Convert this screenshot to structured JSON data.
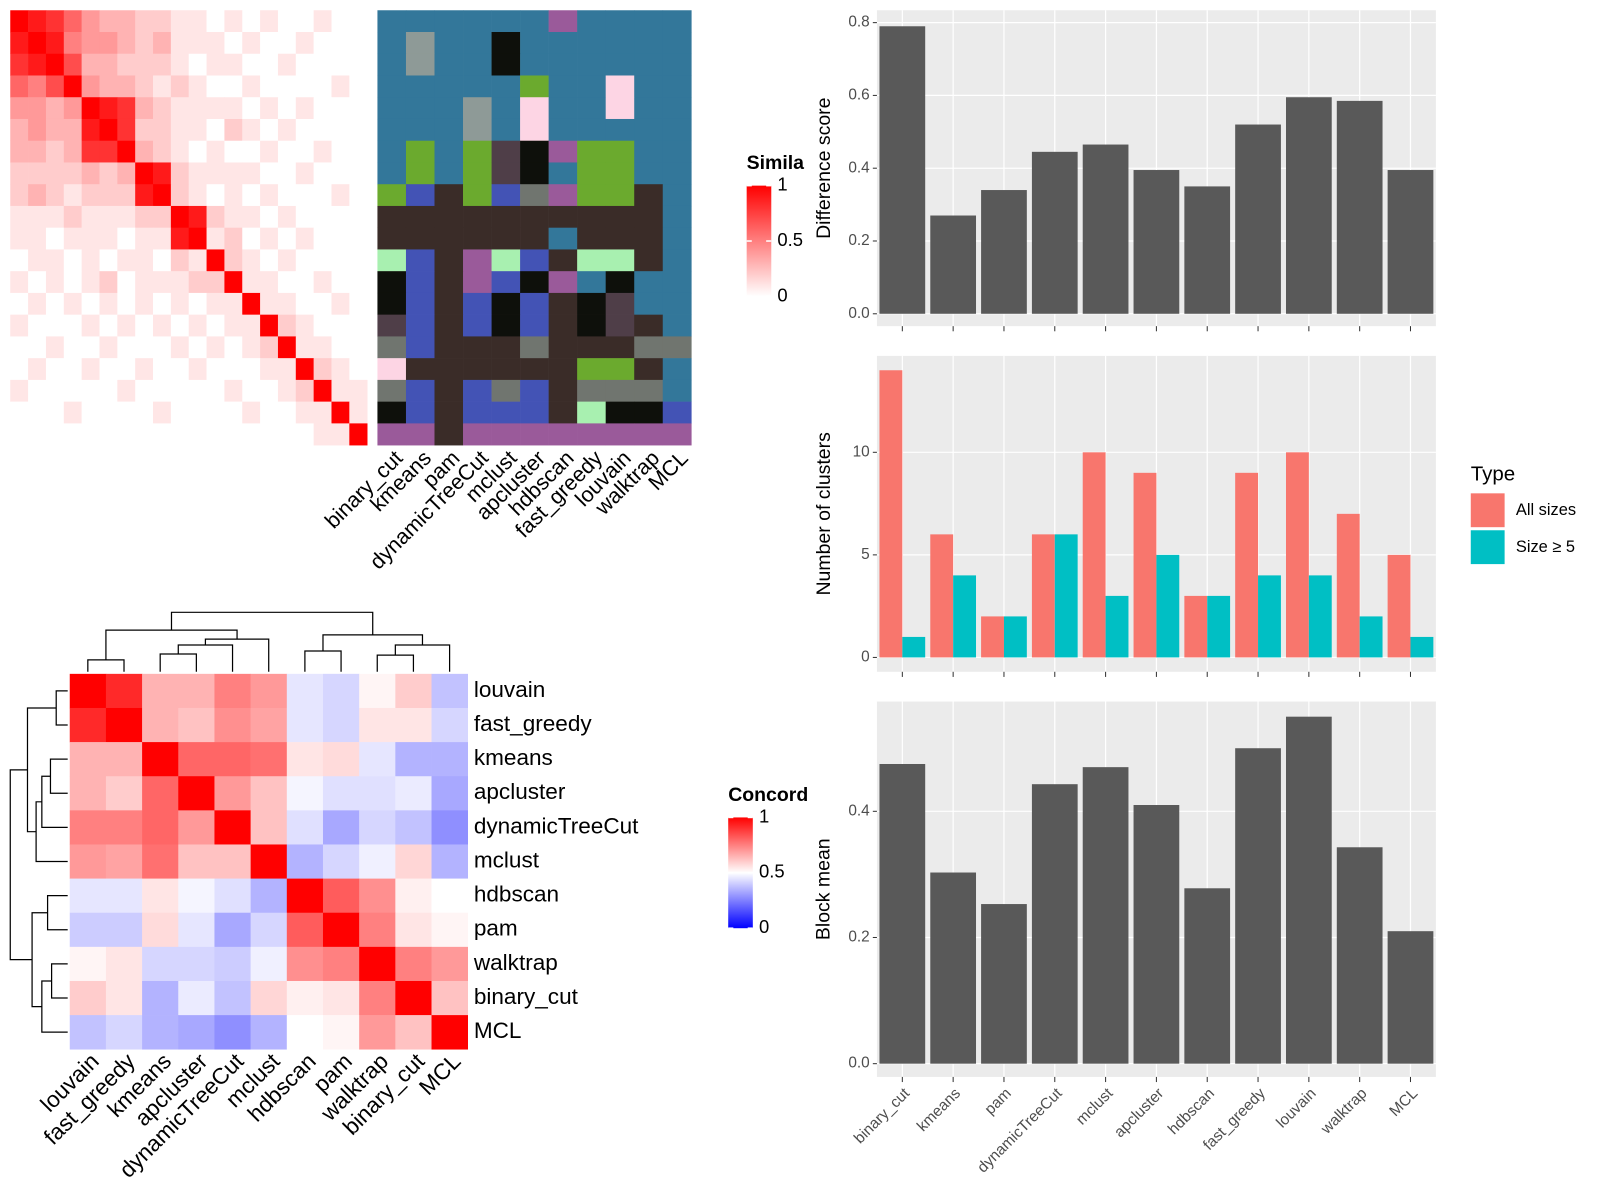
{
  "chart_data": [
    {
      "type": "heatmap",
      "legend_title": "Simila",
      "clim": [
        0,
        1
      ],
      "colorbar_ticks": [
        0,
        0.5,
        1
      ],
      "colors": [
        "#ffffff",
        "#ff0000"
      ],
      "values": [
        [
          1,
          0.9,
          0.8,
          0.6,
          0.4,
          0.3,
          0.3,
          0.2,
          0.2,
          0.1,
          0.1,
          0,
          0.1,
          0,
          0.1,
          0,
          0,
          0.1,
          0,
          0
        ],
        [
          0.9,
          1,
          0.9,
          0.5,
          0.4,
          0.4,
          0.3,
          0.2,
          0.3,
          0.1,
          0.1,
          0.1,
          0,
          0.1,
          0,
          0,
          0.1,
          0,
          0,
          0
        ],
        [
          0.8,
          0.9,
          1,
          0.7,
          0.3,
          0.3,
          0.2,
          0.2,
          0.2,
          0.1,
          0,
          0.1,
          0.1,
          0,
          0,
          0.1,
          0,
          0,
          0,
          0
        ],
        [
          0.6,
          0.5,
          0.7,
          1,
          0.4,
          0.3,
          0.3,
          0.2,
          0.1,
          0.2,
          0.1,
          0,
          0,
          0.1,
          0,
          0,
          0,
          0,
          0.1,
          0
        ],
        [
          0.4,
          0.4,
          0.3,
          0.4,
          1,
          0.9,
          0.8,
          0.3,
          0.2,
          0.1,
          0.1,
          0.1,
          0.1,
          0,
          0.1,
          0,
          0.1,
          0,
          0,
          0
        ],
        [
          0.3,
          0.4,
          0.3,
          0.3,
          0.9,
          1,
          0.8,
          0.2,
          0.2,
          0.1,
          0.1,
          0,
          0.2,
          0.1,
          0,
          0.1,
          0,
          0,
          0,
          0
        ],
        [
          0.3,
          0.3,
          0.2,
          0.3,
          0.8,
          0.8,
          1,
          0.3,
          0.2,
          0.1,
          0,
          0.1,
          0,
          0,
          0.1,
          0,
          0,
          0.1,
          0,
          0
        ],
        [
          0.2,
          0.2,
          0.2,
          0.2,
          0.3,
          0.2,
          0.3,
          1,
          0.9,
          0.2,
          0.1,
          0.1,
          0.1,
          0.1,
          0,
          0,
          0.1,
          0,
          0,
          0
        ],
        [
          0.2,
          0.3,
          0.2,
          0.1,
          0.2,
          0.2,
          0.2,
          0.9,
          1,
          0.2,
          0.1,
          0,
          0.1,
          0,
          0.1,
          0,
          0,
          0,
          0.1,
          0
        ],
        [
          0.1,
          0.1,
          0.1,
          0.2,
          0.1,
          0.1,
          0.1,
          0.2,
          0.2,
          1,
          0.9,
          0.2,
          0.1,
          0.1,
          0,
          0.1,
          0,
          0,
          0,
          0
        ],
        [
          0.1,
          0.1,
          0,
          0.1,
          0.1,
          0.1,
          0,
          0.1,
          0.1,
          0.9,
          1,
          0.1,
          0.2,
          0,
          0.1,
          0,
          0.1,
          0,
          0,
          0
        ],
        [
          0,
          0.1,
          0.1,
          0,
          0.1,
          0,
          0.1,
          0.1,
          0,
          0.2,
          0.1,
          1,
          0.2,
          0.1,
          0,
          0.1,
          0,
          0,
          0,
          0
        ],
        [
          0.1,
          0,
          0.1,
          0,
          0.1,
          0.2,
          0,
          0.1,
          0.1,
          0.1,
          0.2,
          0.2,
          1,
          0.1,
          0.1,
          0,
          0,
          0.1,
          0,
          0
        ],
        [
          0,
          0.1,
          0,
          0.1,
          0,
          0.1,
          0,
          0.1,
          0,
          0.1,
          0,
          0.1,
          0.1,
          1,
          0.1,
          0.1,
          0,
          0,
          0.1,
          0
        ],
        [
          0.1,
          0,
          0,
          0,
          0.1,
          0,
          0.1,
          0,
          0.1,
          0,
          0.1,
          0,
          0.1,
          0.1,
          1,
          0.2,
          0.1,
          0,
          0,
          0
        ],
        [
          0,
          0,
          0.1,
          0,
          0,
          0.1,
          0,
          0,
          0,
          0.1,
          0,
          0.1,
          0,
          0.1,
          0.2,
          1,
          0.1,
          0.1,
          0,
          0
        ],
        [
          0,
          0.1,
          0,
          0,
          0.1,
          0,
          0,
          0.1,
          0,
          0,
          0.1,
          0,
          0,
          0,
          0.1,
          0.1,
          1,
          0.2,
          0.1,
          0
        ],
        [
          0.1,
          0,
          0,
          0,
          0,
          0,
          0.1,
          0,
          0,
          0,
          0,
          0,
          0.1,
          0,
          0,
          0.1,
          0.2,
          1,
          0.1,
          0.1
        ],
        [
          0,
          0,
          0,
          0.1,
          0,
          0,
          0,
          0,
          0.1,
          0,
          0,
          0,
          0,
          0.1,
          0,
          0,
          0.1,
          0.1,
          1,
          0.1
        ],
        [
          0,
          0,
          0,
          0,
          0,
          0,
          0,
          0,
          0,
          0,
          0,
          0,
          0,
          0,
          0,
          0,
          0,
          0.1,
          0.1,
          1
        ]
      ]
    },
    {
      "type": "class_heatmap",
      "categories": [
        "binary_cut",
        "kmeans",
        "pam",
        "dynamicTreeCut",
        "mclust",
        "apcluster",
        "hdbscan",
        "fast_greedy",
        "louvain",
        "walktrap",
        "MCL"
      ],
      "class_colors": [
        "#33779a",
        "#8e9a97",
        "#0e100b",
        "#fdd5e4",
        "#6baa2e",
        "#3a2c28",
        "#4353b5",
        "#a8f0b0",
        "#9a5a9a",
        "#70756f",
        "#4f3e48"
      ],
      "values": [
        [
          0,
          0,
          0,
          0,
          0,
          0,
          8,
          0,
          0,
          0,
          0
        ],
        [
          0,
          1,
          0,
          0,
          2,
          0,
          0,
          0,
          0,
          0,
          0
        ],
        [
          0,
          1,
          0,
          0,
          2,
          0,
          0,
          0,
          0,
          0,
          0
        ],
        [
          0,
          0,
          0,
          0,
          0,
          4,
          0,
          0,
          3,
          0,
          0
        ],
        [
          0,
          0,
          0,
          1,
          0,
          3,
          0,
          0,
          3,
          0,
          0
        ],
        [
          0,
          0,
          0,
          1,
          0,
          3,
          0,
          0,
          0,
          0,
          0
        ],
        [
          0,
          4,
          0,
          4,
          10,
          2,
          8,
          4,
          4,
          0,
          0
        ],
        [
          0,
          4,
          0,
          4,
          10,
          2,
          0,
          4,
          4,
          0,
          0
        ],
        [
          4,
          6,
          5,
          4,
          6,
          9,
          8,
          4,
          4,
          5,
          0
        ],
        [
          5,
          5,
          5,
          5,
          5,
          5,
          5,
          5,
          5,
          5,
          0
        ],
        [
          5,
          5,
          5,
          5,
          5,
          5,
          0,
          5,
          5,
          5,
          0
        ],
        [
          7,
          6,
          5,
          8,
          7,
          6,
          5,
          7,
          7,
          5,
          0
        ],
        [
          2,
          6,
          5,
          8,
          6,
          2,
          8,
          0,
          2,
          0,
          0
        ],
        [
          2,
          6,
          5,
          6,
          2,
          6,
          5,
          2,
          10,
          0,
          0
        ],
        [
          10,
          6,
          5,
          6,
          2,
          6,
          5,
          2,
          10,
          5,
          0
        ],
        [
          9,
          6,
          5,
          5,
          5,
          9,
          5,
          5,
          5,
          9,
          9
        ],
        [
          3,
          5,
          5,
          5,
          5,
          5,
          5,
          4,
          4,
          5,
          0
        ],
        [
          9,
          6,
          5,
          6,
          9,
          6,
          5,
          9,
          9,
          9,
          0
        ],
        [
          2,
          6,
          5,
          6,
          6,
          6,
          5,
          7,
          2,
          2,
          6
        ],
        [
          8,
          8,
          5,
          8,
          8,
          8,
          8,
          8,
          8,
          8,
          8
        ]
      ]
    },
    {
      "type": "heatmap",
      "legend_title": "Concord",
      "clim": [
        0,
        1
      ],
      "colorbar_ticks": [
        0,
        0.5,
        1
      ],
      "colors": [
        "#0000ff",
        "#ffffff",
        "#ff0000"
      ],
      "categories": [
        "louvain",
        "fast_greedy",
        "kmeans",
        "apcluster",
        "dynamicTreeCut",
        "mclust",
        "hdbscan",
        "pam",
        "walktrap",
        "binary_cut",
        "MCL"
      ],
      "values": [
        [
          1,
          0.92,
          0.65,
          0.65,
          0.75,
          0.7,
          0.45,
          0.42,
          0.52,
          0.6,
          0.38
        ],
        [
          0.92,
          1,
          0.65,
          0.62,
          0.72,
          0.68,
          0.45,
          0.42,
          0.55,
          0.55,
          0.42
        ],
        [
          0.65,
          0.65,
          1,
          0.8,
          0.8,
          0.78,
          0.55,
          0.57,
          0.45,
          0.35,
          0.35
        ],
        [
          0.65,
          0.6,
          0.8,
          1,
          0.7,
          0.62,
          0.48,
          0.44,
          0.44,
          0.46,
          0.33
        ],
        [
          0.75,
          0.75,
          0.8,
          0.7,
          1,
          0.62,
          0.44,
          0.33,
          0.42,
          0.38,
          0.28
        ],
        [
          0.7,
          0.68,
          0.78,
          0.62,
          0.62,
          1,
          0.35,
          0.42,
          0.47,
          0.58,
          0.35
        ],
        [
          0.45,
          0.45,
          0.55,
          0.48,
          0.44,
          0.35,
          1,
          0.82,
          0.72,
          0.53,
          0.5
        ],
        [
          0.4,
          0.4,
          0.57,
          0.45,
          0.33,
          0.42,
          0.82,
          1,
          0.75,
          0.55,
          0.52
        ],
        [
          0.52,
          0.55,
          0.42,
          0.42,
          0.4,
          0.47,
          0.72,
          0.75,
          1,
          0.75,
          0.7
        ],
        [
          0.6,
          0.55,
          0.35,
          0.46,
          0.38,
          0.58,
          0.53,
          0.55,
          0.75,
          1,
          0.62
        ],
        [
          0.38,
          0.42,
          0.35,
          0.33,
          0.28,
          0.35,
          0.5,
          0.52,
          0.7,
          0.62,
          1
        ]
      ]
    },
    {
      "type": "bar",
      "ylabel": "Difference score",
      "color": "#595959",
      "grid": true,
      "values": [
        0.79,
        0.27,
        0.34,
        0.445,
        0.465,
        0.395,
        0.35,
        0.52,
        0.595,
        0.585,
        0.395
      ],
      "ylim": [
        -0.034,
        0.834
      ],
      "yticks": [
        {
          "value": 0,
          "label": "0.0"
        },
        0.2,
        0.4,
        0.6,
        0.8
      ]
    },
    {
      "type": "grouped_bar",
      "ylabel": "Number of clusters",
      "legend_title": "Type",
      "grid": true,
      "series": [
        {
          "name": "All sizes",
          "color": "#f8766d",
          "values": [
            14,
            6,
            2,
            6,
            10,
            9,
            3,
            9,
            10,
            7,
            5
          ]
        },
        {
          "name": "Size ≥ 5",
          "color": "#00bfc4",
          "values": [
            1,
            4,
            2,
            6,
            3,
            5,
            3,
            4,
            4,
            2,
            1
          ]
        }
      ],
      "ylim": [
        -0.7,
        14.7
      ],
      "yticks": [
        0,
        5,
        10
      ]
    },
    {
      "type": "bar",
      "ylabel": "Block mean",
      "color": "#595959",
      "grid": true,
      "categories": [
        "binary_cut",
        "kmeans",
        "pam",
        "dynamicTreeCut",
        "mclust",
        "apcluster",
        "hdbscan",
        "fast_greedy",
        "louvain",
        "walktrap",
        "MCL"
      ],
      "values": [
        0.475,
        0.303,
        0.253,
        0.443,
        0.47,
        0.41,
        0.278,
        0.5,
        0.55,
        0.343,
        0.21
      ],
      "ylim": [
        -0.021,
        0.574
      ],
      "yticks": [
        {
          "value": 0,
          "label": "0.0"
        },
        0.2,
        0.4
      ]
    }
  ]
}
